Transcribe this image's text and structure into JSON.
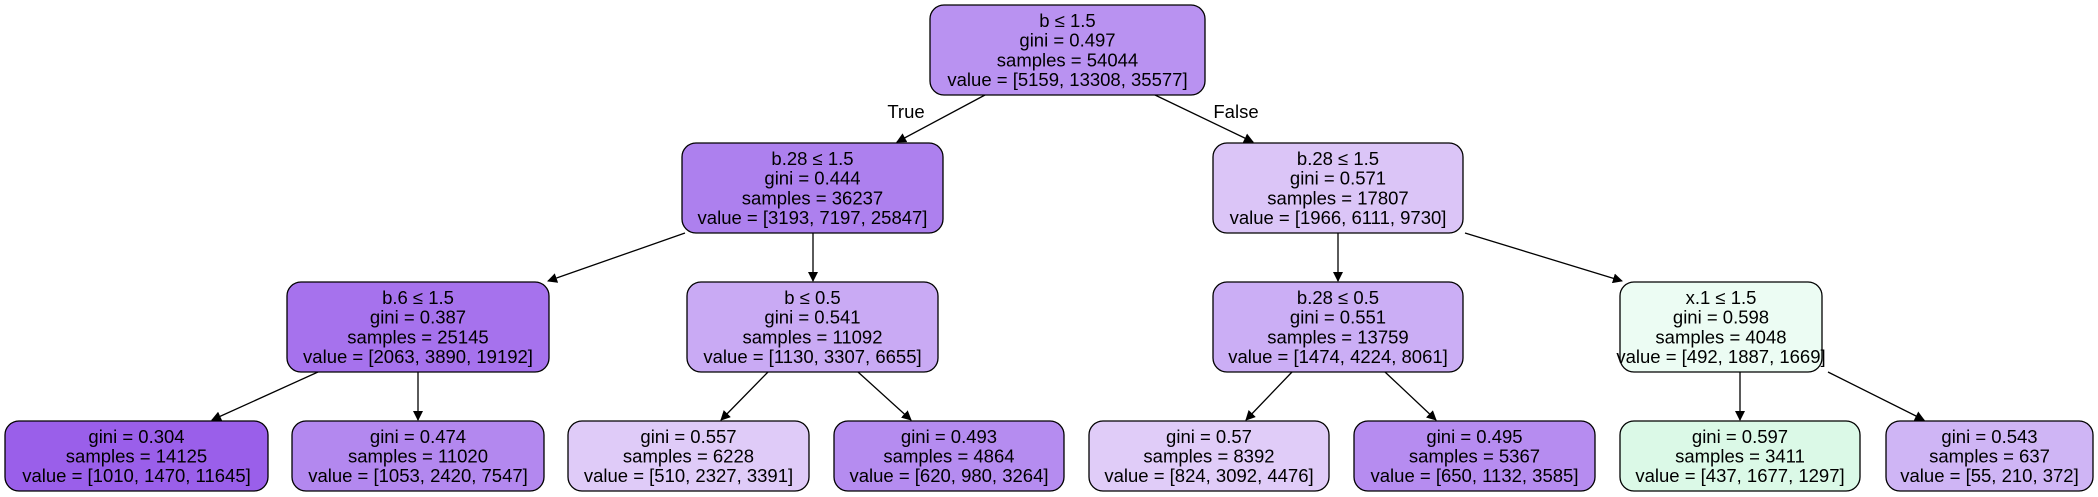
{
  "edge_labels": {
    "left": "True",
    "right": "False"
  },
  "nodes": [
    {
      "id": "n0",
      "lines": [
        "b ≤ 1.5",
        "gini = 0.497",
        "samples = 54044",
        "value = [5159, 13308, 35577]"
      ],
      "fill": "#b992f1"
    },
    {
      "id": "n1",
      "lines": [
        "b.28 ≤ 1.5",
        "gini = 0.444",
        "samples = 36237",
        "value = [3193, 7197, 25847]"
      ],
      "fill": "#ad80ee"
    },
    {
      "id": "n2",
      "lines": [
        "b.28 ≤ 1.5",
        "gini = 0.571",
        "samples = 17807",
        "value = [1966, 6111, 9730]"
      ],
      "fill": "#dbc5f7"
    },
    {
      "id": "n3",
      "lines": [
        "b.6 ≤ 1.5",
        "gini = 0.387",
        "samples = 25145",
        "value = [2063, 3890, 19192]"
      ],
      "fill": "#a672ed"
    },
    {
      "id": "n4",
      "lines": [
        "b ≤ 0.5",
        "gini = 0.541",
        "samples = 11092",
        "value = [1130, 3307, 6655]"
      ],
      "fill": "#c9aaf4"
    },
    {
      "id": "n5",
      "lines": [
        "b.28 ≤ 0.5",
        "gini = 0.551",
        "samples = 13759",
        "value = [1474, 4224, 8061]"
      ],
      "fill": "#cbaef5"
    },
    {
      "id": "n6",
      "lines": [
        "x.1 ≤ 1.5",
        "gini = 0.598",
        "samples = 4048",
        "value = [492, 1887, 1669]"
      ],
      "fill": "#ecfcf3"
    },
    {
      "id": "n7",
      "lines": [
        "gini = 0.304",
        "samples = 14125",
        "value = [1010, 1470, 11645]"
      ],
      "fill": "#9a5fea"
    },
    {
      "id": "n8",
      "lines": [
        "gini = 0.474",
        "samples = 11020",
        "value = [1053, 2420, 7547]"
      ],
      "fill": "#b388ef"
    },
    {
      "id": "n9",
      "lines": [
        "gini = 0.557",
        "samples = 6228",
        "value = [510, 2327, 3391]"
      ],
      "fill": "#dfcbf8"
    },
    {
      "id": "n10",
      "lines": [
        "gini = 0.493",
        "samples = 4864",
        "value = [620, 980, 3264]"
      ],
      "fill": "#b58cf0"
    },
    {
      "id": "n11",
      "lines": [
        "gini = 0.57",
        "samples = 8392",
        "value = [824, 3092, 4476]"
      ],
      "fill": "#e0ccf8"
    },
    {
      "id": "n12",
      "lines": [
        "gini = 0.495",
        "samples = 5367",
        "value = [650, 1132, 3585]"
      ],
      "fill": "#b68cf0"
    },
    {
      "id": "n13",
      "lines": [
        "gini = 0.597",
        "samples = 3411",
        "value = [437, 1677, 1297]"
      ],
      "fill": "#dbf9e7"
    },
    {
      "id": "n14",
      "lines": [
        "gini = 0.543",
        "samples = 637",
        "value = [55, 210, 372]"
      ],
      "fill": "#cfb5f5"
    }
  ],
  "edges": [
    [
      "n0",
      "n1"
    ],
    [
      "n0",
      "n2"
    ],
    [
      "n1",
      "n3"
    ],
    [
      "n1",
      "n4"
    ],
    [
      "n2",
      "n5"
    ],
    [
      "n2",
      "n6"
    ],
    [
      "n3",
      "n7"
    ],
    [
      "n3",
      "n8"
    ],
    [
      "n4",
      "n9"
    ],
    [
      "n4",
      "n10"
    ],
    [
      "n5",
      "n11"
    ],
    [
      "n5",
      "n12"
    ],
    [
      "n6",
      "n13"
    ],
    [
      "n6",
      "n14"
    ]
  ]
}
